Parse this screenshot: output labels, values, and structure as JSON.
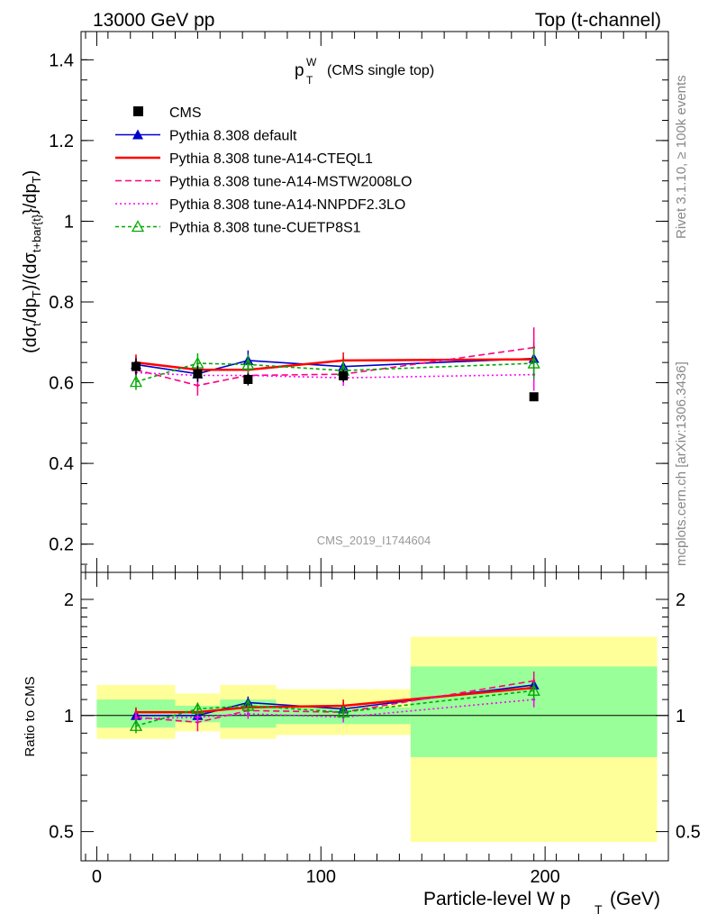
{
  "header": {
    "energy_label": "13000 GeV pp",
    "process_label": "Top (t-channel)"
  },
  "side_labels": {
    "rivet": "Rivet 3.1.10, ≥ 100k events",
    "mcplots": "mcplots.cern.ch [arXiv:1306.3436]"
  },
  "chart_data": [
    {
      "type": "line",
      "panel": "main",
      "title": "p_T^W (CMS single top)",
      "title_main": "p",
      "title_sup": "W",
      "title_sub": "T",
      "title_rest": "(CMS single top)",
      "watermark": "CMS_2019_I1744604",
      "ylabel": "(dσt/dpT)/(dσt+bar{t}/dpT)",
      "ylabel_parts": [
        "(dσ",
        "t",
        "/dp",
        "T",
        ")/(dσ",
        "t+bar{t}",
        "}/dp",
        "T",
        ")"
      ],
      "xlim": [
        -7,
        255
      ],
      "ylim": [
        0.13,
        1.47
      ],
      "yticks": [
        0.2,
        0.4,
        0.6,
        0.8,
        1,
        1.2,
        1.4
      ],
      "ytick_labels": [
        "0.2",
        "0.4",
        "0.6",
        "0.8",
        "1",
        "1.2",
        "1.4"
      ],
      "legend_position": "top-left",
      "x": [
        17.5,
        45,
        67.5,
        110,
        195
      ],
      "data": {
        "name": "CMS",
        "values": [
          0.64,
          0.622,
          0.608,
          0.617,
          0.565
        ],
        "errors": [
          0.02,
          0.02,
          0.015,
          0.015,
          0.0
        ]
      },
      "series": [
        {
          "name": "Pythia 8.308 default",
          "color": "#0000cc",
          "dash": "",
          "marker": "triangle-filled",
          "values": [
            0.645,
            0.622,
            0.655,
            0.64,
            0.66
          ],
          "errors": [
            0.02,
            0.02,
            0.025,
            0.025,
            0.04
          ]
        },
        {
          "name": "Pythia 8.308 tune-A14-CTEQL1",
          "color": "#ff0000",
          "dash": "",
          "marker": "none",
          "values": [
            0.65,
            0.632,
            0.632,
            0.655,
            0.658
          ],
          "errors": [
            0.02,
            0.02,
            0.02,
            0.02,
            0.04
          ]
        },
        {
          "name": "Pythia 8.308 tune-A14-MSTW2008LO",
          "color": "#ff0080",
          "dash": "dashed",
          "marker": "none",
          "values": [
            0.632,
            0.593,
            0.618,
            0.621,
            0.687
          ],
          "errors": [
            0.02,
            0.025,
            0.02,
            0.02,
            0.05
          ]
        },
        {
          "name": "Pythia 8.308 tune-A14-NNPDF2.3LO",
          "color": "#ff00ff",
          "dash": "dotted",
          "marker": "none",
          "values": [
            0.625,
            0.618,
            0.618,
            0.612,
            0.62
          ],
          "errors": [
            0.02,
            0.02,
            0.02,
            0.02,
            0.04
          ]
        },
        {
          "name": "Pythia 8.308 tune-CUETP8S1",
          "color": "#00aa00",
          "dash": "dashed-fine",
          "marker": "triangle-open",
          "values": [
            0.602,
            0.648,
            0.645,
            0.63,
            0.648
          ],
          "errors": [
            0.02,
            0.025,
            0.025,
            0.025,
            0.04
          ]
        }
      ]
    },
    {
      "type": "line",
      "panel": "ratio",
      "ylabel": "Ratio to CMS",
      "xlabel": "Particle-level W p_T (GeV)",
      "xlabel_main": "Particle-level W p",
      "xlabel_sub": "T",
      "xlabel_unit": "(GeV)",
      "xlim": [
        -7,
        255
      ],
      "ylim": [
        0.42,
        2.35
      ],
      "log_y": true,
      "xticks": [
        0,
        100,
        200
      ],
      "xtick_labels": [
        "0",
        "100",
        "200"
      ],
      "yticks": [
        0.5,
        1,
        2
      ],
      "ytick_labels": [
        "0.5",
        "1",
        "2"
      ],
      "bins": [
        {
          "lo": 0,
          "hi": 35,
          "yellow": [
            0.87,
            1.2
          ],
          "green": [
            0.93,
            1.1
          ]
        },
        {
          "lo": 35,
          "hi": 55,
          "yellow": [
            0.91,
            1.14
          ],
          "green": [
            0.96,
            1.06
          ]
        },
        {
          "lo": 55,
          "hi": 80,
          "yellow": [
            0.87,
            1.2
          ],
          "green": [
            0.93,
            1.1
          ]
        },
        {
          "lo": 80,
          "hi": 140,
          "yellow": [
            0.89,
            1.17
          ],
          "green": [
            0.95,
            1.05
          ]
        },
        {
          "lo": 140,
          "hi": 250,
          "yellow": [
            0.47,
            1.6
          ],
          "green": [
            0.78,
            1.34
          ]
        }
      ],
      "x": [
        17.5,
        45,
        67.5,
        110,
        195
      ],
      "series": [
        {
          "name": "Pythia 8.308 default",
          "values": [
            1.0,
            1.0,
            1.08,
            1.04,
            1.2
          ],
          "errors": [
            0.04,
            0.04,
            0.04,
            0.04,
            0.05
          ]
        },
        {
          "name": "Pythia 8.308 tune-A14-CTEQL1",
          "values": [
            1.02,
            1.02,
            1.05,
            1.06,
            1.18
          ],
          "errors": [
            0.03,
            0.03,
            0.03,
            0.04,
            0.05
          ]
        },
        {
          "name": "Pythia 8.308 tune-A14-MSTW2008LO",
          "values": [
            0.99,
            0.96,
            1.03,
            1.02,
            1.23
          ],
          "errors": [
            0.04,
            0.05,
            0.04,
            0.04,
            0.07
          ]
        },
        {
          "name": "Pythia 8.308 tune-A14-NNPDF2.3LO",
          "values": [
            0.98,
            0.99,
            1.01,
            0.99,
            1.1
          ],
          "errors": [
            0.03,
            0.03,
            0.03,
            0.03,
            0.05
          ]
        },
        {
          "name": "Pythia 8.308 tune-CUETP8S1",
          "values": [
            0.94,
            1.04,
            1.06,
            1.02,
            1.16
          ],
          "errors": [
            0.04,
            0.04,
            0.04,
            0.04,
            0.06
          ]
        }
      ]
    }
  ]
}
